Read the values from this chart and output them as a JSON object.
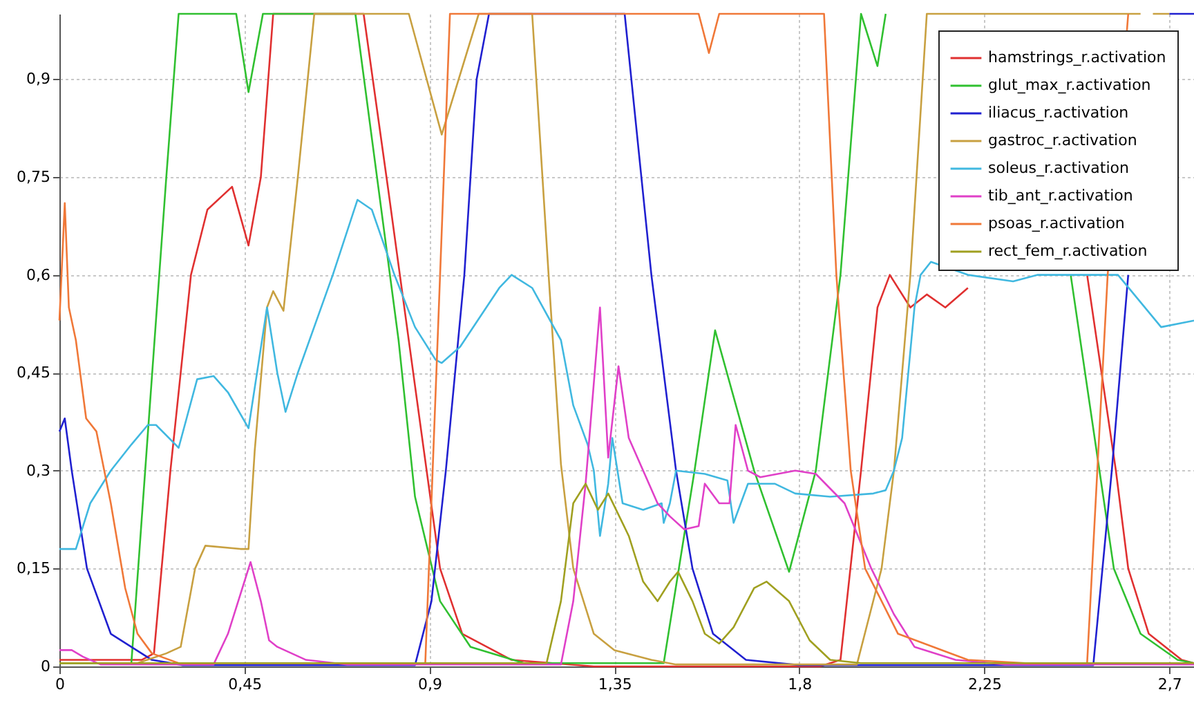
{
  "chart_data": {
    "type": "line",
    "xlim": [
      0,
      2.76
    ],
    "ylim": [
      0,
      1
    ],
    "xticks": [
      0,
      {
        "value": 0.45,
        "label": "0,45"
      },
      {
        "value": 0.9,
        "label": "0,9"
      },
      {
        "value": 1.35,
        "label": "1,35"
      },
      {
        "value": 1.8,
        "label": "1,8"
      },
      {
        "value": 2.25,
        "label": "2,25"
      },
      {
        "value": 2.7,
        "label": "2,7"
      }
    ],
    "yticks": [
      0,
      {
        "value": 0.15,
        "label": "0,15"
      },
      {
        "value": 0.3,
        "label": "0,3"
      },
      {
        "value": 0.45,
        "label": "0,45"
      },
      {
        "value": 0.6,
        "label": "0,6"
      },
      {
        "value": 0.75,
        "label": "0,75"
      },
      {
        "value": 0.9,
        "label": "0,9"
      }
    ],
    "grid": true,
    "legend": "top right",
    "series": [
      {
        "name": "hamstrings_r.activation",
        "color": "#e03030",
        "x": [
          0,
          0.2,
          0.23,
          0.27,
          0.32,
          0.36,
          0.42,
          0.46,
          0.49,
          0.52,
          0.74,
          0.8,
          0.865,
          0.926,
          0.98,
          1.1,
          1.3,
          1.85,
          1.9,
          1.95,
          1.99,
          2.02,
          2.07,
          2.11,
          2.155,
          2.21,
          2.25,
          2.45,
          2.5,
          2.57,
          2.6,
          2.65,
          2.73,
          2.76
        ],
        "values": [
          0.01,
          0.01,
          0.02,
          0.3,
          0.6,
          0.7,
          0.735,
          0.645,
          0.75,
          1,
          1,
          0.73,
          0.43,
          0.15,
          0.05,
          0.01,
          0,
          0,
          0.01,
          0.3,
          0.55,
          0.6,
          0.55,
          0.57,
          0.55,
          0.58,
          null,
          null,
          0.6,
          0.3,
          0.15,
          0.05,
          0.01,
          0.005
        ]
      },
      {
        "name": "glut_max_r.activation",
        "color": "#30c030",
        "x": [
          0,
          0.175,
          0.22,
          0.26,
          0.29,
          0.43,
          0.46,
          0.495,
          0.72,
          0.825,
          0.865,
          0.926,
          1.0,
          1.13,
          1.47,
          1.545,
          1.595,
          1.69,
          1.775,
          1.84,
          1.9,
          1.95,
          1.99,
          2.01,
          2.4,
          2.46,
          2.53,
          2.565,
          2.63,
          2.72,
          2.76
        ],
        "values": [
          0.005,
          0.005,
          0.4,
          0.75,
          1,
          1,
          0.88,
          1,
          1,
          0.5,
          0.26,
          0.1,
          0.03,
          0.005,
          0.005,
          0.3,
          0.515,
          0.3,
          0.145,
          0.3,
          0.6,
          1,
          0.92,
          1,
          null,
          0.6,
          0.3,
          0.15,
          0.05,
          0.01,
          0.005
        ]
      },
      {
        "name": "iliacus_r.activation",
        "color": "#2020d0",
        "x": [
          0,
          0.013,
          0.03,
          0.067,
          0.125,
          0.225,
          0.3,
          0.865,
          0.905,
          0.94,
          0.985,
          1.015,
          1.045,
          1.375,
          1.44,
          1.5,
          1.54,
          1.59,
          1.67,
          1.8,
          2.515,
          2.56,
          2.6,
          2.68,
          2.7,
          2.76
        ],
        "values": [
          0.36,
          0.38,
          0.3,
          0.15,
          0.05,
          0.01,
          0.002,
          0.002,
          0.1,
          0.3,
          0.6,
          0.9,
          1,
          1,
          0.6,
          0.3,
          0.15,
          0.05,
          0.01,
          0.002,
          0.002,
          0.3,
          0.6,
          null,
          1,
          1
        ]
      },
      {
        "name": "gastroc_r.activation",
        "color": "#c8a040",
        "x": [
          0,
          0.19,
          0.26,
          0.295,
          0.33,
          0.355,
          0.44,
          0.46,
          0.475,
          0.505,
          0.52,
          0.545,
          0.58,
          0.62,
          0.85,
          0.93,
          1.02,
          1.15,
          1.19,
          1.22,
          1.25,
          1.3,
          1.35,
          1.44,
          1.5,
          1.94,
          2.0,
          2.03,
          2.07,
          2.11,
          2.63,
          2.645,
          2.66,
          2.7
        ],
        "values": [
          0.005,
          0.005,
          0.02,
          0.03,
          0.15,
          0.185,
          0.18,
          0.18,
          0.33,
          0.55,
          0.575,
          0.545,
          0.75,
          1,
          1,
          0.815,
          1,
          1,
          0.6,
          0.31,
          0.15,
          0.05,
          0.025,
          0.01,
          0.003,
          0.003,
          0.15,
          0.3,
          0.6,
          1,
          1,
          null,
          1,
          1
        ]
      },
      {
        "name": "soleus_r.activation",
        "color": "#40b8e0",
        "x": [
          0,
          0.04,
          0.075,
          0.125,
          0.175,
          0.215,
          0.235,
          0.29,
          0.335,
          0.375,
          0.41,
          0.46,
          0.505,
          0.53,
          0.55,
          0.58,
          0.665,
          0.725,
          0.76,
          0.815,
          0.865,
          0.915,
          0.93,
          0.975,
          1.07,
          1.1,
          1.15,
          1.22,
          1.25,
          1.285,
          1.3,
          1.315,
          1.335,
          1.345,
          1.37,
          1.42,
          1.465,
          1.47,
          1.485,
          1.5,
          1.57,
          1.625,
          1.64,
          1.675,
          1.74,
          1.79,
          1.875,
          1.98,
          2.01,
          2.03,
          2.05,
          2.08,
          2.095,
          2.12,
          2.21,
          2.32,
          2.38,
          2.575,
          2.68,
          2.76
        ],
        "values": [
          0.18,
          0.18,
          0.25,
          0.3,
          0.34,
          0.37,
          0.37,
          0.335,
          0.44,
          0.445,
          0.42,
          0.365,
          0.55,
          0.45,
          0.39,
          0.45,
          0.6,
          0.715,
          0.7,
          0.6,
          0.52,
          0.47,
          0.465,
          0.49,
          0.58,
          0.6,
          0.58,
          0.5,
          0.4,
          0.34,
          0.3,
          0.2,
          0.28,
          0.35,
          0.25,
          0.24,
          0.25,
          0.22,
          0.25,
          0.3,
          0.295,
          0.285,
          0.22,
          0.28,
          0.28,
          0.265,
          0.26,
          0.265,
          0.27,
          0.3,
          0.35,
          0.55,
          0.6,
          0.62,
          0.6,
          0.59,
          0.6,
          0.6,
          0.52,
          0.53
        ]
      },
      {
        "name": "tib_ant_r.activation",
        "color": "#e040c8",
        "x": [
          0,
          0.03,
          0.057,
          0.1,
          0.375,
          0.41,
          0.465,
          0.49,
          0.51,
          0.53,
          0.6,
          0.7,
          1.22,
          1.25,
          1.28,
          1.315,
          1.335,
          1.36,
          1.385,
          1.42,
          1.455,
          1.485,
          1.52,
          1.555,
          1.57,
          1.605,
          1.63,
          1.645,
          1.675,
          1.705,
          1.79,
          1.84,
          1.91,
          1.975,
          2.03,
          2.08,
          2.18,
          2.3,
          2.76
        ],
        "values": [
          0.025,
          0.025,
          0.015,
          0.003,
          0.003,
          0.05,
          0.16,
          0.1,
          0.04,
          0.03,
          0.01,
          0.003,
          0.003,
          0.1,
          0.28,
          0.55,
          0.32,
          0.46,
          0.35,
          0.3,
          0.25,
          0.23,
          0.21,
          0.215,
          0.28,
          0.25,
          0.25,
          0.37,
          0.3,
          0.29,
          0.3,
          0.295,
          0.25,
          0.15,
          0.08,
          0.03,
          0.01,
          0.003,
          0.003
        ]
      },
      {
        "name": "psoas_r.activation",
        "color": "#f07838",
        "x": [
          0,
          0.013,
          0.023,
          0.04,
          0.065,
          0.09,
          0.125,
          0.16,
          0.19,
          0.225,
          0.29,
          0.89,
          0.92,
          0.95,
          1.555,
          1.58,
          1.605,
          1.86,
          1.89,
          1.925,
          1.96,
          2.04,
          2.21,
          2.35,
          2.5,
          2.55,
          2.6
        ],
        "values": [
          0.53,
          0.71,
          0.55,
          0.5,
          0.38,
          0.36,
          0.25,
          0.12,
          0.05,
          0.02,
          0.005,
          0.005,
          0.5,
          1,
          1,
          0.94,
          1,
          1,
          0.6,
          0.3,
          0.15,
          0.05,
          0.01,
          0.005,
          0.005,
          0.6,
          1
        ]
      },
      {
        "name": "rect_fem_r.activation",
        "color": "#a0a020",
        "x": [
          0,
          1.185,
          1.22,
          1.25,
          1.28,
          1.31,
          1.335,
          1.385,
          1.42,
          1.455,
          1.485,
          1.505,
          1.54,
          1.57,
          1.605,
          1.64,
          1.69,
          1.72,
          1.775,
          1.825,
          1.875,
          1.95,
          2.76
        ],
        "values": [
          0.005,
          0.005,
          0.1,
          0.25,
          0.28,
          0.24,
          0.265,
          0.2,
          0.13,
          0.1,
          0.13,
          0.145,
          0.1,
          0.05,
          0.035,
          0.06,
          0.12,
          0.13,
          0.1,
          0.04,
          0.01,
          0.005,
          0.005
        ]
      }
    ]
  }
}
